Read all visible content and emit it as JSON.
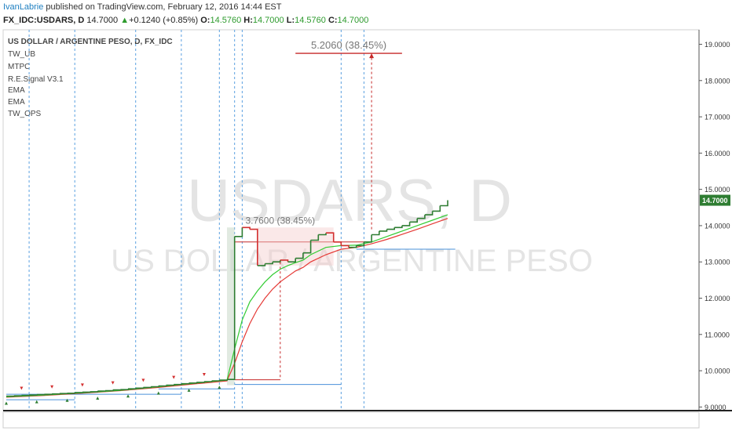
{
  "header": {
    "username": "IvanLabrie",
    "published_text": " published on TradingView.com, February 12, 2016 14:44 EST",
    "symbol": "FX_IDC:USDARS, D",
    "last": "14.7000",
    "change": "+0.1240 (+0.85%)",
    "o_label": "O:",
    "o_val": "14.5760",
    "h_label": "H:",
    "h_val": "14.7000",
    "l_label": "L:",
    "l_val": "14.5760",
    "c_label": "C:",
    "c_val": "14.7000"
  },
  "legend": {
    "title": "US DOLLAR / ARGENTINE PESO, D, FX_IDC",
    "indicators": [
      "TW_UB",
      "MTPC",
      "R.E.Signal V3.1",
      "EMA",
      "EMA",
      "TW_OPS"
    ]
  },
  "watermark": {
    "symbol": "USDARS, D",
    "name": "US DOLLAR / ARGENTINE PESO"
  },
  "annotations": {
    "big_move": "5.2060 (38.45%)",
    "small_move": "3.7600 (38.45%)"
  },
  "colors": {
    "up": "#2e7d32",
    "down": "#d32f2f",
    "ema_fast": "#33cc33",
    "ema_slow": "#e53935",
    "hline_blue": "#4a90d9",
    "target_red": "#c62828",
    "price_badge": "#2e7d32"
  },
  "chart_data": {
    "type": "line",
    "title": "US DOLLAR / ARGENTINE PESO, D, FX_IDC",
    "y_axis": {
      "ticks": [
        "19.0000",
        "18.0000",
        "17.0000",
        "16.0000",
        "15.0000",
        "14.0000",
        "13.0000",
        "12.0000",
        "11.0000",
        "10.0000",
        "9.0000"
      ],
      "tick_values": [
        19,
        18,
        17,
        16,
        15,
        14,
        13,
        12,
        11,
        10,
        9
      ],
      "range": [
        8.9,
        19.4
      ],
      "last_price_label": "14.7000",
      "last_price": 14.7
    },
    "price_series": [
      [
        0,
        9.3
      ],
      [
        1,
        9.31
      ],
      [
        2,
        9.32
      ],
      [
        3,
        9.33
      ],
      [
        4,
        9.34
      ],
      [
        5,
        9.35
      ],
      [
        6,
        9.36
      ],
      [
        7,
        9.37
      ],
      [
        8,
        9.38
      ],
      [
        9,
        9.4
      ],
      [
        10,
        9.41
      ],
      [
        11,
        9.42
      ],
      [
        12,
        9.44
      ],
      [
        13,
        9.45
      ],
      [
        14,
        9.47
      ],
      [
        15,
        9.48
      ],
      [
        16,
        9.5
      ],
      [
        17,
        9.52
      ],
      [
        18,
        9.54
      ],
      [
        19,
        9.56
      ],
      [
        20,
        9.58
      ],
      [
        21,
        9.6
      ],
      [
        22,
        9.62
      ],
      [
        23,
        9.64
      ],
      [
        24,
        9.66
      ],
      [
        25,
        9.68
      ],
      [
        26,
        9.7
      ],
      [
        27,
        9.72
      ],
      [
        28,
        9.74
      ],
      [
        29,
        9.76
      ],
      [
        30,
        13.7
      ],
      [
        31,
        13.95
      ],
      [
        32,
        13.9
      ],
      [
        33,
        12.9
      ],
      [
        34,
        12.95
      ],
      [
        35,
        13.0
      ],
      [
        36,
        13.05
      ],
      [
        37,
        13.0
      ],
      [
        38,
        13.1
      ],
      [
        39,
        13.25
      ],
      [
        40,
        13.6
      ],
      [
        41,
        13.75
      ],
      [
        42,
        13.8
      ],
      [
        43,
        13.55
      ],
      [
        44,
        13.45
      ],
      [
        45,
        13.4
      ],
      [
        46,
        13.45
      ],
      [
        47,
        13.55
      ],
      [
        48,
        13.75
      ],
      [
        49,
        13.85
      ],
      [
        50,
        13.9
      ],
      [
        51,
        13.95
      ],
      [
        52,
        14.0
      ],
      [
        53,
        14.1
      ],
      [
        54,
        14.2
      ],
      [
        55,
        14.3
      ],
      [
        56,
        14.4
      ],
      [
        57,
        14.55
      ],
      [
        58,
        14.7
      ]
    ],
    "ema_fast": [
      [
        0,
        9.28
      ],
      [
        5,
        9.33
      ],
      [
        10,
        9.39
      ],
      [
        15,
        9.46
      ],
      [
        20,
        9.56
      ],
      [
        25,
        9.66
      ],
      [
        29,
        9.74
      ],
      [
        30,
        10.6
      ],
      [
        31,
        11.4
      ],
      [
        32,
        11.9
      ],
      [
        33,
        12.2
      ],
      [
        34,
        12.45
      ],
      [
        35,
        12.65
      ],
      [
        36,
        12.8
      ],
      [
        37,
        12.9
      ],
      [
        38,
        12.98
      ],
      [
        39,
        13.05
      ],
      [
        40,
        13.2
      ],
      [
        42,
        13.4
      ],
      [
        44,
        13.45
      ],
      [
        46,
        13.46
      ],
      [
        48,
        13.55
      ],
      [
        50,
        13.7
      ],
      [
        52,
        13.85
      ],
      [
        54,
        14.0
      ],
      [
        56,
        14.15
      ],
      [
        58,
        14.3
      ]
    ],
    "ema_slow": [
      [
        0,
        9.27
      ],
      [
        5,
        9.32
      ],
      [
        10,
        9.38
      ],
      [
        15,
        9.45
      ],
      [
        20,
        9.54
      ],
      [
        25,
        9.64
      ],
      [
        29,
        9.72
      ],
      [
        30,
        10.2
      ],
      [
        31,
        10.8
      ],
      [
        32,
        11.3
      ],
      [
        33,
        11.7
      ],
      [
        34,
        12.0
      ],
      [
        35,
        12.25
      ],
      [
        36,
        12.45
      ],
      [
        37,
        12.6
      ],
      [
        38,
        12.75
      ],
      [
        39,
        12.85
      ],
      [
        40,
        13.0
      ],
      [
        42,
        13.2
      ],
      [
        44,
        13.35
      ],
      [
        46,
        13.4
      ],
      [
        48,
        13.5
      ],
      [
        50,
        13.62
      ],
      [
        52,
        13.76
      ],
      [
        54,
        13.9
      ],
      [
        56,
        14.05
      ],
      [
        58,
        14.2
      ]
    ],
    "vertical_lines_x": [
      3,
      9,
      17,
      23,
      28,
      30,
      31,
      44,
      47
    ],
    "horizontal_levels": [
      {
        "value": 13.55,
        "color": "red",
        "from": 30,
        "to": 47
      },
      {
        "value": 13.35,
        "color": "blue",
        "from": 46,
        "to": 59
      },
      {
        "value": 9.75,
        "color": "red",
        "from": 30,
        "to": 36
      },
      {
        "value": 9.62,
        "color": "blue",
        "from": 30,
        "to": 44
      },
      {
        "value": 9.5,
        "color": "blue",
        "from": 20,
        "to": 30
      },
      {
        "value": 9.35,
        "color": "blue",
        "from": 0,
        "to": 23
      },
      {
        "value": 9.2,
        "color": "blue",
        "from": 0,
        "to": 9
      }
    ],
    "target_level": {
      "value": 18.75,
      "from": 38,
      "to": 52
    },
    "grid": false
  }
}
